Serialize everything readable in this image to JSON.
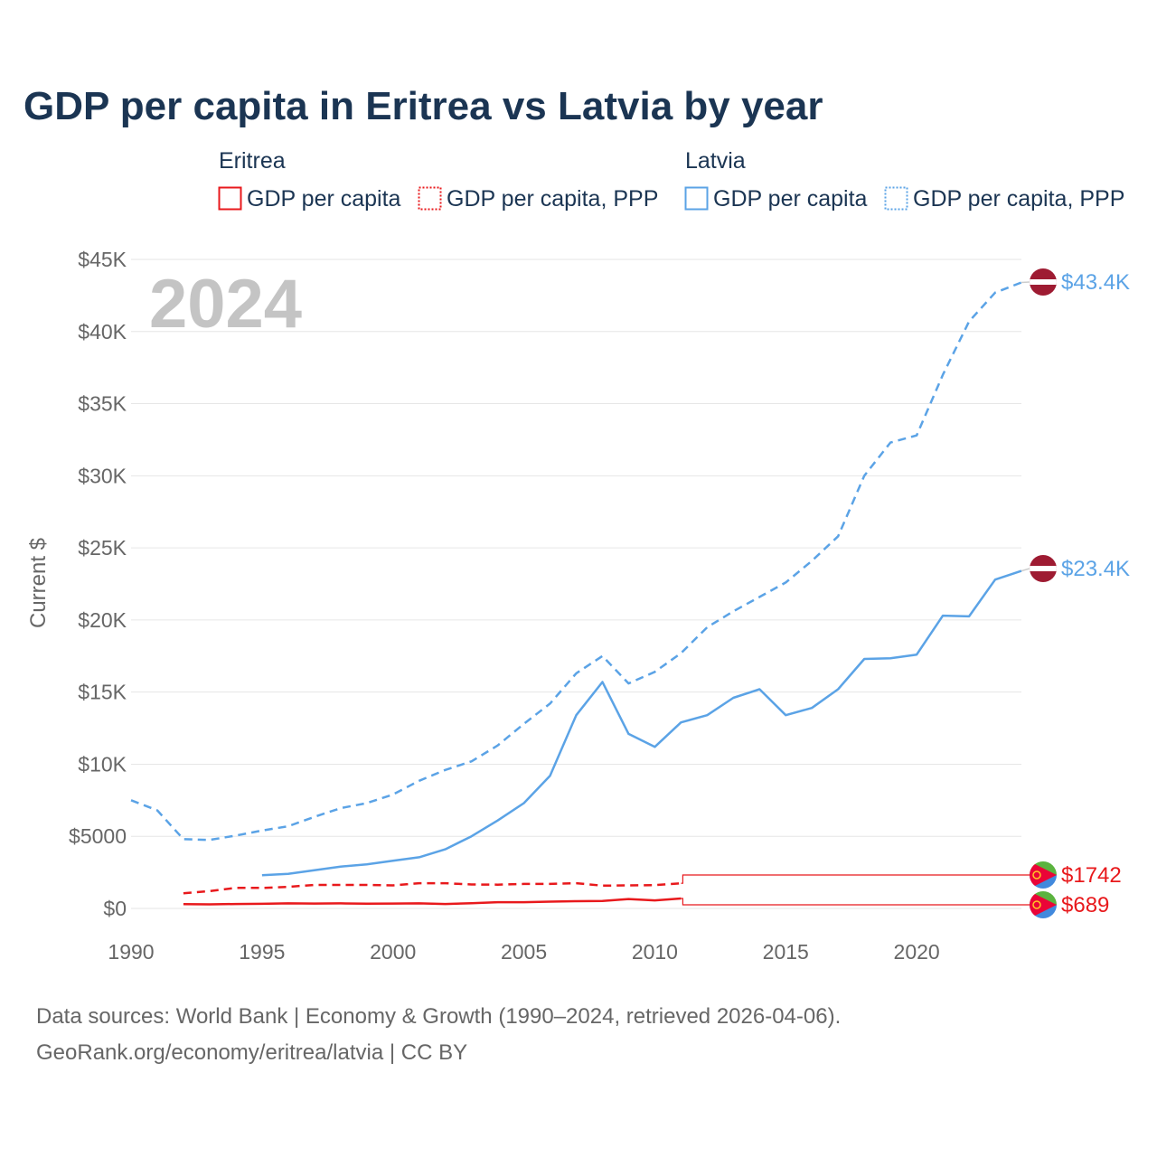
{
  "title": "GDP per capita in Eritrea vs Latvia by year",
  "year_watermark": "2024",
  "legend": {
    "groups": [
      {
        "country": "Eritrea",
        "color": "#e8191c",
        "items": [
          {
            "label": "GDP per capita",
            "style": "solid"
          },
          {
            "label": "GDP per capita, PPP",
            "style": "dotted"
          }
        ]
      },
      {
        "country": "Latvia",
        "color": "#5ba3e6",
        "items": [
          {
            "label": "GDP per capita",
            "style": "solid"
          },
          {
            "label": "GDP per capita, PPP",
            "style": "dotted"
          }
        ]
      }
    ]
  },
  "footer": {
    "line1": "Data sources: World Bank | Economy & Growth (1990–2024, retrieved 2026-04-06).",
    "line2": "GeoRank.org/economy/eritrea/latvia | CC BY"
  },
  "colors": {
    "eritrea": "#e8191c",
    "latvia": "#5ba3e6",
    "title": "#1b3553"
  },
  "chart_data": {
    "type": "line",
    "title": "GDP per capita in Eritrea vs Latvia by year",
    "ylabel": "Current $",
    "xlabel": "",
    "xlim": [
      1990,
      2024
    ],
    "ylim": [
      0,
      45000
    ],
    "x_ticks": [
      1990,
      1995,
      2000,
      2005,
      2010,
      2015,
      2020
    ],
    "x_tick_labels": [
      "1990",
      "1995",
      "2000",
      "2005",
      "2010",
      "2015",
      "2020"
    ],
    "y_ticks": [
      0,
      5000,
      10000,
      15000,
      20000,
      25000,
      30000,
      35000,
      40000,
      45000
    ],
    "y_tick_labels": [
      "$0",
      "$5000",
      "$10K",
      "$15K",
      "$20K",
      "$25K",
      "$30K",
      "$35K",
      "$40K",
      "$45K"
    ],
    "grid": true,
    "series": [
      {
        "name": "Latvia GDP per capita, PPP",
        "country": "Latvia",
        "style": "dashed",
        "color": "#5ba3e6",
        "x": [
          1990,
          1991,
          1992,
          1993,
          1994,
          1995,
          1996,
          1997,
          1998,
          1999,
          2000,
          2001,
          2002,
          2003,
          2004,
          2005,
          2006,
          2007,
          2008,
          2009,
          2010,
          2011,
          2012,
          2013,
          2014,
          2015,
          2016,
          2017,
          2018,
          2019,
          2020,
          2021,
          2022,
          2023,
          2024
        ],
        "values": [
          7500,
          6800,
          4800,
          4750,
          5050,
          5400,
          5700,
          6350,
          6950,
          7300,
          7900,
          8850,
          9600,
          10200,
          11300,
          12800,
          14200,
          16300,
          17500,
          15600,
          16400,
          17700,
          19500,
          20600,
          21600,
          22600,
          24100,
          25800,
          30000,
          32300,
          32800,
          37000,
          40700,
          42700,
          43400
        ],
        "end_label": "$43.4K"
      },
      {
        "name": "Latvia GDP per capita",
        "country": "Latvia",
        "style": "solid",
        "color": "#5ba3e6",
        "x": [
          1995,
          1996,
          1997,
          1998,
          1999,
          2000,
          2001,
          2002,
          2003,
          2004,
          2005,
          2006,
          2007,
          2008,
          2009,
          2010,
          2011,
          2012,
          2013,
          2014,
          2015,
          2016,
          2017,
          2018,
          2019,
          2020,
          2021,
          2022,
          2023,
          2024
        ],
        "values": [
          2300,
          2400,
          2650,
          2900,
          3050,
          3300,
          3550,
          4100,
          5000,
          6100,
          7300,
          9200,
          13400,
          15700,
          12100,
          11200,
          12900,
          13400,
          14600,
          15200,
          13400,
          13900,
          15200,
          17300,
          17350,
          17600,
          20300,
          20250,
          22800,
          23400
        ],
        "end_label": "$23.4K"
      },
      {
        "name": "Eritrea GDP per capita, PPP",
        "country": "Eritrea",
        "style": "dashed",
        "color": "#e8191c",
        "x": [
          1992,
          1993,
          1994,
          1995,
          1996,
          1997,
          1998,
          1999,
          2000,
          2001,
          2002,
          2003,
          2004,
          2005,
          2006,
          2007,
          2008,
          2009,
          2010,
          2011
        ],
        "values": [
          1050,
          1200,
          1430,
          1420,
          1500,
          1630,
          1630,
          1630,
          1600,
          1750,
          1750,
          1660,
          1650,
          1700,
          1700,
          1750,
          1580,
          1600,
          1620,
          1742
        ],
        "end_label": "$1742"
      },
      {
        "name": "Eritrea GDP per capita",
        "country": "Eritrea",
        "style": "solid",
        "color": "#e8191c",
        "x": [
          1992,
          1993,
          1994,
          1995,
          1996,
          1997,
          1998,
          1999,
          2000,
          2001,
          2002,
          2003,
          2004,
          2005,
          2006,
          2007,
          2008,
          2009,
          2010,
          2011
        ],
        "values": [
          300,
          280,
          310,
          320,
          350,
          340,
          350,
          330,
          340,
          350,
          310,
          360,
          430,
          430,
          470,
          500,
          520,
          650,
          560,
          689
        ],
        "end_label": "$689"
      }
    ]
  }
}
